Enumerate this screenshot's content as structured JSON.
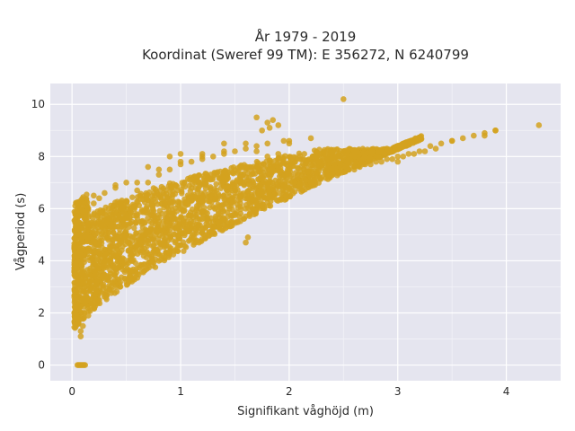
{
  "chart_data": {
    "type": "scatter",
    "title": "År 1979 - 2019",
    "subtitle": "Koordinat (Sweref 99 TM): E 356272, N 6240799",
    "xlabel": "Signifikant våghöjd (m)",
    "ylabel": "Vågperiod (s)",
    "xlim": [
      -0.2,
      4.5
    ],
    "ylim": [
      -0.6,
      10.8
    ],
    "x_ticks": [
      0,
      1,
      2,
      3,
      4
    ],
    "x_tick_labels": [
      "0",
      "1",
      "2",
      "3",
      "4"
    ],
    "y_ticks": [
      0,
      2,
      4,
      6,
      8,
      10
    ],
    "y_tick_labels": [
      "0",
      "2",
      "4",
      "6",
      "8",
      "10"
    ],
    "grid": true,
    "background_color": "#e5e5ef",
    "marker_color": "#d4a21f",
    "series": [
      {
        "name": "",
        "x": [
          0.05,
          0.06,
          0.07,
          0.08,
          0.09,
          0.1,
          0.11,
          0.12,
          0.03,
          0.06,
          0.08,
          0.04,
          0.05,
          0.1,
          0.15,
          0.2,
          0.25,
          0.3,
          0.35,
          0.4,
          0.5,
          0.6,
          0.7,
          0.8,
          0.9,
          1.0,
          1.1,
          1.2,
          1.3,
          1.4,
          1.5,
          1.6,
          1.7,
          1.8,
          1.9,
          2.0,
          2.1,
          2.2,
          2.3,
          2.4,
          2.5,
          2.6,
          2.7,
          2.8,
          2.9,
          3.0,
          3.1,
          3.2,
          3.3,
          3.4,
          3.5,
          3.6,
          3.7,
          3.8,
          3.9,
          0.1,
          0.2,
          0.3,
          0.4,
          0.5,
          0.6,
          0.7,
          0.8,
          0.9,
          1.0,
          1.1,
          1.2,
          1.3,
          1.4,
          1.5,
          1.6,
          1.7,
          1.8,
          2.0,
          2.2,
          0.3,
          0.5,
          0.8,
          1.0,
          1.2,
          1.5,
          1.8,
          2.2,
          2.6,
          3.0,
          0.15,
          0.2,
          0.25,
          0.3,
          0.4,
          0.6,
          0.8,
          1.0,
          1.2,
          1.4,
          2.5,
          4.3,
          3.9,
          3.8,
          3.5,
          2.9,
          2.6,
          1.9,
          1.8,
          1.7,
          1.6,
          1.4,
          1.2,
          1.0,
          0.9,
          0.7,
          0.5,
          0.4,
          0.2,
          0.1,
          0.08,
          0.12,
          0.18,
          0.28,
          0.38,
          0.45,
          0.55,
          0.65,
          0.75,
          0.85,
          0.95,
          1.05,
          1.15,
          1.25,
          1.35,
          1.45,
          1.55,
          1.65,
          1.75,
          1.85,
          1.95,
          2.05,
          2.15,
          2.25,
          2.35,
          2.45,
          2.55,
          2.65,
          2.75,
          2.85,
          2.95,
          3.05,
          3.15,
          3.25,
          3.35,
          1.8,
          1.85,
          1.9,
          1.7,
          1.75,
          1.82,
          1.95,
          2.0,
          1.1,
          1.15,
          1.2,
          0.9,
          0.95,
          1.3,
          1.35,
          1.6,
          1.62,
          0.12,
          0.14,
          0.16,
          0.22,
          0.24,
          0.32,
          0.34,
          0.42,
          0.44,
          0.52,
          0.54,
          0.62,
          0.64,
          0.72,
          0.74,
          0.82,
          0.84,
          0.92,
          0.94,
          1.02,
          1.04
        ],
        "y": [
          0,
          0,
          0,
          0,
          0,
          0,
          0,
          0,
          2.0,
          1.6,
          1.3,
          5.0,
          4.0,
          1.5,
          1.9,
          2.2,
          2.5,
          2.7,
          2.9,
          3.0,
          3.2,
          3.5,
          3.8,
          4.0,
          4.3,
          4.6,
          4.9,
          5.1,
          5.3,
          5.6,
          5.8,
          6.0,
          6.2,
          6.4,
          6.6,
          6.8,
          6.9,
          7.0,
          7.2,
          7.3,
          7.4,
          7.6,
          7.7,
          7.8,
          7.9,
          8.0,
          8.1,
          8.2,
          8.4,
          8.5,
          8.6,
          8.7,
          8.8,
          8.9,
          9.0,
          3.5,
          4.5,
          5.2,
          5.8,
          6.3,
          6.7,
          7.0,
          7.3,
          7.5,
          7.7,
          7.8,
          7.9,
          8.0,
          8.1,
          8.2,
          8.3,
          8.4,
          8.5,
          8.6,
          8.7,
          4.0,
          5.0,
          5.5,
          6.0,
          6.3,
          6.6,
          6.9,
          7.2,
          7.5,
          7.8,
          6.0,
          6.2,
          6.4,
          6.6,
          6.8,
          7.0,
          7.5,
          7.8,
          8.0,
          8.2,
          10.2,
          9.2,
          9.0,
          8.8,
          8.6,
          8.3,
          8.2,
          8.1,
          8.0,
          8.2,
          8.5,
          8.5,
          8.1,
          8.1,
          8.0,
          7.6,
          7.0,
          6.9,
          6.5,
          5.9,
          1.1,
          2.4,
          3.0,
          3.4,
          3.8,
          4.0,
          4.2,
          4.4,
          4.6,
          4.8,
          5.0,
          5.2,
          5.4,
          5.6,
          5.8,
          6.0,
          6.2,
          6.4,
          6.6,
          6.8,
          6.9,
          7.0,
          7.1,
          7.2,
          7.3,
          7.4,
          7.5,
          7.6,
          7.7,
          7.8,
          7.9,
          8.0,
          8.1,
          8.2,
          8.3,
          9.3,
          9.4,
          9.2,
          9.5,
          9.0,
          9.1,
          8.6,
          8.5,
          6.3,
          6.1,
          5.9,
          4.9,
          4.7,
          5.1,
          5.3,
          4.7,
          4.9,
          3.0,
          3.2,
          3.4,
          3.5,
          3.7,
          3.8,
          4.0,
          4.1,
          4.3,
          4.4,
          4.6,
          4.7,
          4.9,
          5.0,
          5.2,
          5.3,
          5.5,
          5.6,
          5.8,
          5.9,
          6.1
        ]
      }
    ]
  }
}
